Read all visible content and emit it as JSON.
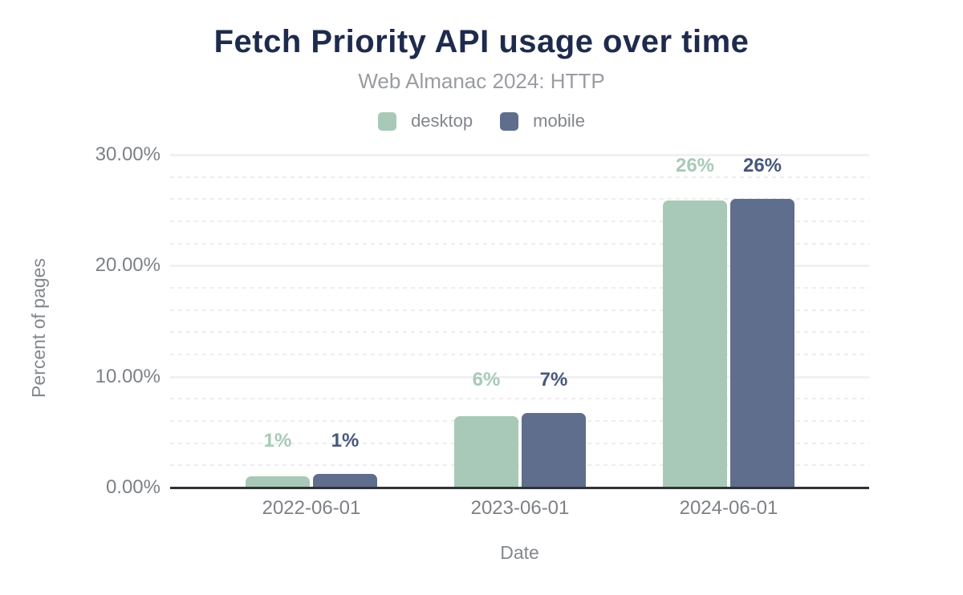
{
  "chart_data": {
    "type": "bar",
    "title": "Fetch Priority API usage over time",
    "subtitle": "Web Almanac 2024: HTTP",
    "categories": [
      "2022-06-01",
      "2023-06-01",
      "2024-06-01"
    ],
    "series": [
      {
        "name": "desktop",
        "color": "#a8c9b7",
        "label_color": "#a8c9b7",
        "values": [
          1.0,
          6.4,
          25.9
        ],
        "labels": [
          "1%",
          "6%",
          "26%"
        ]
      },
      {
        "name": "mobile",
        "color": "#5f6e8c",
        "label_color": "#47577d",
        "values": [
          1.25,
          6.7,
          26.05
        ],
        "labels": [
          "1%",
          "7%",
          "26%"
        ]
      }
    ],
    "xlabel": "Date",
    "ylabel": "Percent of pages",
    "ylim": [
      0,
      30
    ],
    "y_ticks": [
      {
        "value": 0,
        "label": "0.00%"
      },
      {
        "value": 10,
        "label": "10.00%"
      },
      {
        "value": 20,
        "label": "20.00%"
      },
      {
        "value": 30,
        "label": "30.00%"
      }
    ],
    "minor_grid_step": 2,
    "grid": "on",
    "legend_position": "top",
    "colors": {
      "title": "#1e2b4d",
      "subtitle": "#999ca2",
      "axis_title": "#84878d",
      "tick_label": "#7d8086",
      "axis_line": "#303136",
      "grid_major": "#f1f1f4",
      "grid_minor": "#ededf0",
      "background": "#ffffff"
    }
  }
}
